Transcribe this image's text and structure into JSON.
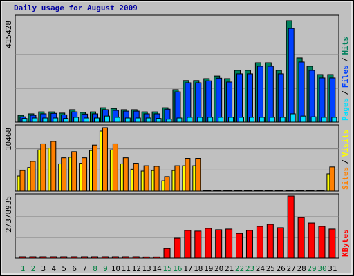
{
  "chart_data": [
    {
      "type": "bar",
      "title": "Daily usage for August 2009",
      "title_color": "#0000a0",
      "ylim": [
        0,
        415428
      ],
      "yticks": [
        415428
      ],
      "legend_separator": "/",
      "series": [
        {
          "name": "Hits",
          "color": "#00805c",
          "values": [
            28000,
            34000,
            42000,
            42000,
            37000,
            51000,
            40000,
            42000,
            59000,
            56000,
            51000,
            51000,
            42000,
            42000,
            59000,
            133000,
            170000,
            170000,
            178000,
            189000,
            178000,
            212000,
            212000,
            243000,
            243000,
            212000,
            415428,
            263000,
            229000,
            195000,
            195000
          ]
        },
        {
          "name": "Files",
          "color": "#0040ff",
          "values": [
            22000,
            28000,
            34000,
            36000,
            30000,
            42000,
            33000,
            34000,
            51000,
            48000,
            45000,
            45000,
            34000,
            34000,
            53000,
            124000,
            161000,
            161000,
            169000,
            180000,
            164000,
            198000,
            198000,
            229000,
            229000,
            198000,
            384000,
            246000,
            212000,
            181000,
            181000
          ]
        },
        {
          "name": "Pages",
          "color": "#00e0ff",
          "values": [
            15000,
            17000,
            17000,
            17000,
            15000,
            20000,
            17000,
            17000,
            25000,
            20000,
            17000,
            17000,
            17000,
            15000,
            12000,
            17000,
            20000,
            20000,
            20000,
            20000,
            20000,
            20000,
            20000,
            20000,
            20000,
            20000,
            34000,
            25000,
            22000,
            20000,
            20000
          ]
        }
      ]
    },
    {
      "type": "bar",
      "ylim": [
        0,
        10468
      ],
      "yticks": [
        10468
      ],
      "legend_separator": "/",
      "series": [
        {
          "name": "Visits",
          "color": "#ffff00",
          "values": [
            2500,
            3900,
            6800,
            7100,
            4500,
            5600,
            4600,
            6700,
            9900,
            6800,
            4500,
            3600,
            3300,
            3400,
            1700,
            3400,
            4200,
            4200,
            0,
            0,
            0,
            0,
            0,
            0,
            0,
            0,
            0,
            0,
            0,
            0,
            2850
          ]
        },
        {
          "name": "Sites",
          "color": "#ff8000",
          "values": [
            3400,
            4900,
            7800,
            8200,
            5500,
            6500,
            5500,
            7600,
            10468,
            7800,
            5500,
            4600,
            4200,
            4100,
            2400,
            4200,
            5400,
            5400,
            0,
            0,
            0,
            0,
            0,
            0,
            0,
            0,
            0,
            0,
            0,
            0,
            4000
          ]
        }
      ]
    },
    {
      "type": "bar",
      "ylim": [
        0,
        27378935
      ],
      "yticks": [
        27378935
      ],
      "categories": [
        "1",
        "2",
        "3",
        "4",
        "5",
        "6",
        "7",
        "8",
        "9",
        "10",
        "11",
        "12",
        "13",
        "14",
        "15",
        "16",
        "17",
        "18",
        "19",
        "20",
        "21",
        "22",
        "23",
        "24",
        "25",
        "26",
        "27",
        "28",
        "29",
        "30",
        "31"
      ],
      "category_colors": [
        "#008040",
        "#008040",
        "#000",
        "#000",
        "#000",
        "#000",
        "#000",
        "#008040",
        "#008040",
        "#000",
        "#000",
        "#000",
        "#000",
        "#000",
        "#008040",
        "#008040",
        "#000",
        "#000",
        "#000",
        "#000",
        "#000",
        "#008040",
        "#008040",
        "#000",
        "#000",
        "#000",
        "#000",
        "#000",
        "#008040",
        "#008040",
        "#000"
      ],
      "series": [
        {
          "name": "KBytes",
          "color": "#ff0000",
          "values": [
            600000,
            600000,
            600000,
            600000,
            600000,
            600000,
            600000,
            600000,
            600000,
            600000,
            600000,
            600000,
            500000,
            500000,
            4200000,
            8800000,
            12200000,
            11900000,
            13100000,
            12500000,
            12800000,
            10900000,
            12200000,
            14000000,
            14900000,
            13400000,
            27378935,
            17900000,
            15500000,
            14000000,
            12800000
          ]
        }
      ]
    }
  ]
}
